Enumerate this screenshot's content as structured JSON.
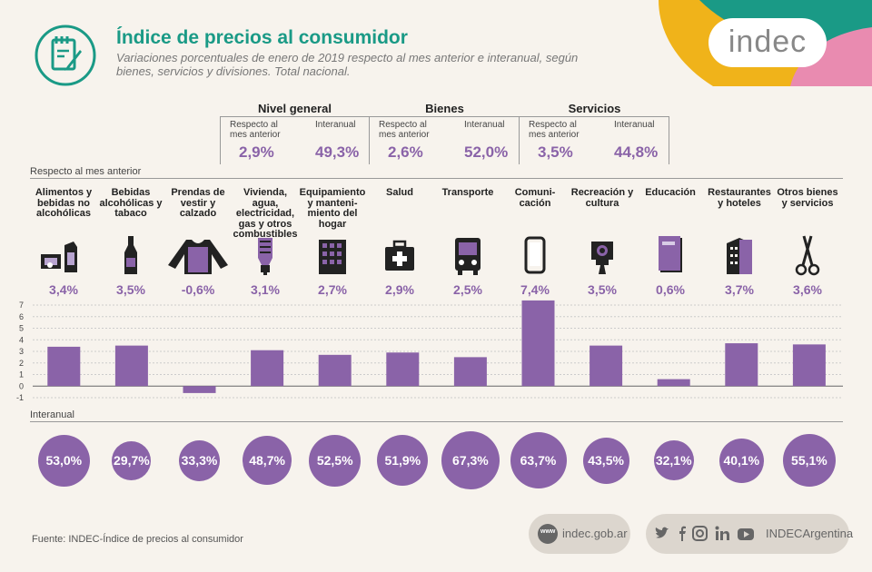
{
  "header": {
    "title": "Índice de precios al consumidor",
    "subtitle": "Variaciones porcentuales de enero de 2019 respecto al mes anterior e interanual, según bienes, servicios y divisiones. Total nacional.",
    "logo_text": "indec"
  },
  "summary": [
    {
      "title": "Nivel general",
      "sub_monthly": "Respecto al mes anterior",
      "sub_yearly": "Interanual",
      "monthly": "2,9%",
      "yearly": "49,3%"
    },
    {
      "title": "Bienes",
      "sub_monthly": "Respecto al mes anterior",
      "sub_yearly": "Interanual",
      "monthly": "2,6%",
      "yearly": "52,0%"
    },
    {
      "title": "Servicios",
      "sub_monthly": "Respecto al mes anterior",
      "sub_yearly": "Interanual",
      "monthly": "3,5%",
      "yearly": "44,8%"
    }
  ],
  "sections": {
    "monthly_label": "Respecto al mes anterior",
    "yearly_label": "Interanual"
  },
  "categories": [
    {
      "label": "Alimentos y bebidas no alcohólicas",
      "monthly_label": "3,4%",
      "yearly_label": "53,0%",
      "icon": "groceries-icon"
    },
    {
      "label": "Bebidas alcohólicas y tabaco",
      "monthly_label": "3,5%",
      "yearly_label": "29,7%",
      "icon": "wine-bottle-icon"
    },
    {
      "label": "Prendas de vestir y calzado",
      "monthly_label": "-0,6%",
      "yearly_label": "33,3%",
      "icon": "sweater-icon"
    },
    {
      "label": "Vivienda, agua, electricidad, gas y otros combustibles",
      "monthly_label": "3,1%",
      "yearly_label": "48,7%",
      "icon": "light-bulb-icon"
    },
    {
      "label": "Equipamiento y manteni- miento del hogar",
      "monthly_label": "2,7%",
      "yearly_label": "52,5%",
      "icon": "building-icon"
    },
    {
      "label": "Salud",
      "monthly_label": "2,9%",
      "yearly_label": "51,9%",
      "icon": "first-aid-kit-icon"
    },
    {
      "label": "Transporte",
      "monthly_label": "2,5%",
      "yearly_label": "67,3%",
      "icon": "bus-icon"
    },
    {
      "label": "Comuni- cación",
      "monthly_label": "7,4%",
      "yearly_label": "63,7%",
      "icon": "mobile-phone-icon"
    },
    {
      "label": "Recreación y cultura",
      "monthly_label": "3,5%",
      "yearly_label": "43,5%",
      "icon": "camera-icon"
    },
    {
      "label": "Educación",
      "monthly_label": "0,6%",
      "yearly_label": "32,1%",
      "icon": "notebook-icon"
    },
    {
      "label": "Restaurantes y hoteles",
      "monthly_label": "3,7%",
      "yearly_label": "40,1%",
      "icon": "hotel-icon"
    },
    {
      "label": "Otros bienes y servicios",
      "monthly_label": "3,6%",
      "yearly_label": "55,1%",
      "icon": "scissors-icon"
    }
  ],
  "chart_data": [
    {
      "type": "bar",
      "categories": [
        "Alimentos y bebidas no alcohólicas",
        "Bebidas alcohólicas y tabaco",
        "Prendas de vestir y calzado",
        "Vivienda, agua, electricidad, gas y otros combustibles",
        "Equipamiento y mantenimiento del hogar",
        "Salud",
        "Transporte",
        "Comunicación",
        "Recreación y cultura",
        "Educación",
        "Restaurantes y hoteles",
        "Otros bienes y servicios"
      ],
      "values": [
        3.4,
        3.5,
        -0.6,
        3.1,
        2.7,
        2.9,
        2.5,
        7.4,
        3.5,
        0.6,
        3.7,
        3.6
      ],
      "ylim": [
        -1,
        7
      ],
      "yticks": [
        "-1",
        "0",
        "1",
        "2",
        "3",
        "4",
        "5",
        "6",
        "7"
      ],
      "grid": true,
      "color": "#8a63a8"
    },
    {
      "type": "bubble",
      "categories": [
        "Alimentos y bebidas no alcohólicas",
        "Bebidas alcohólicas y tabaco",
        "Prendas de vestir y calzado",
        "Vivienda, agua, electricidad, gas y otros combustibles",
        "Equipamiento y mantenimiento del hogar",
        "Salud",
        "Transporte",
        "Comunicación",
        "Recreación y cultura",
        "Educación",
        "Restaurantes y hoteles",
        "Otros bienes y servicios"
      ],
      "values": [
        53.0,
        29.7,
        33.3,
        48.7,
        52.5,
        51.9,
        67.3,
        63.7,
        43.5,
        32.1,
        40.1,
        55.1
      ],
      "color": "#8a63a8"
    }
  ],
  "footer": {
    "source": "Fuente: INDEC-Índice de precios al consumidor",
    "web_badge": "www",
    "website": "indec.gob.ar",
    "social_handle": "INDECArgentina",
    "social_icons": [
      "twitter-icon",
      "facebook-icon",
      "instagram-icon",
      "linkedin-icon",
      "youtube-icon"
    ]
  },
  "colors": {
    "accent": "#8a63a8",
    "title": "#1a9a86",
    "yellow": "#f0b31a",
    "teal": "#1a9a86",
    "pink": "#e98bb0"
  }
}
